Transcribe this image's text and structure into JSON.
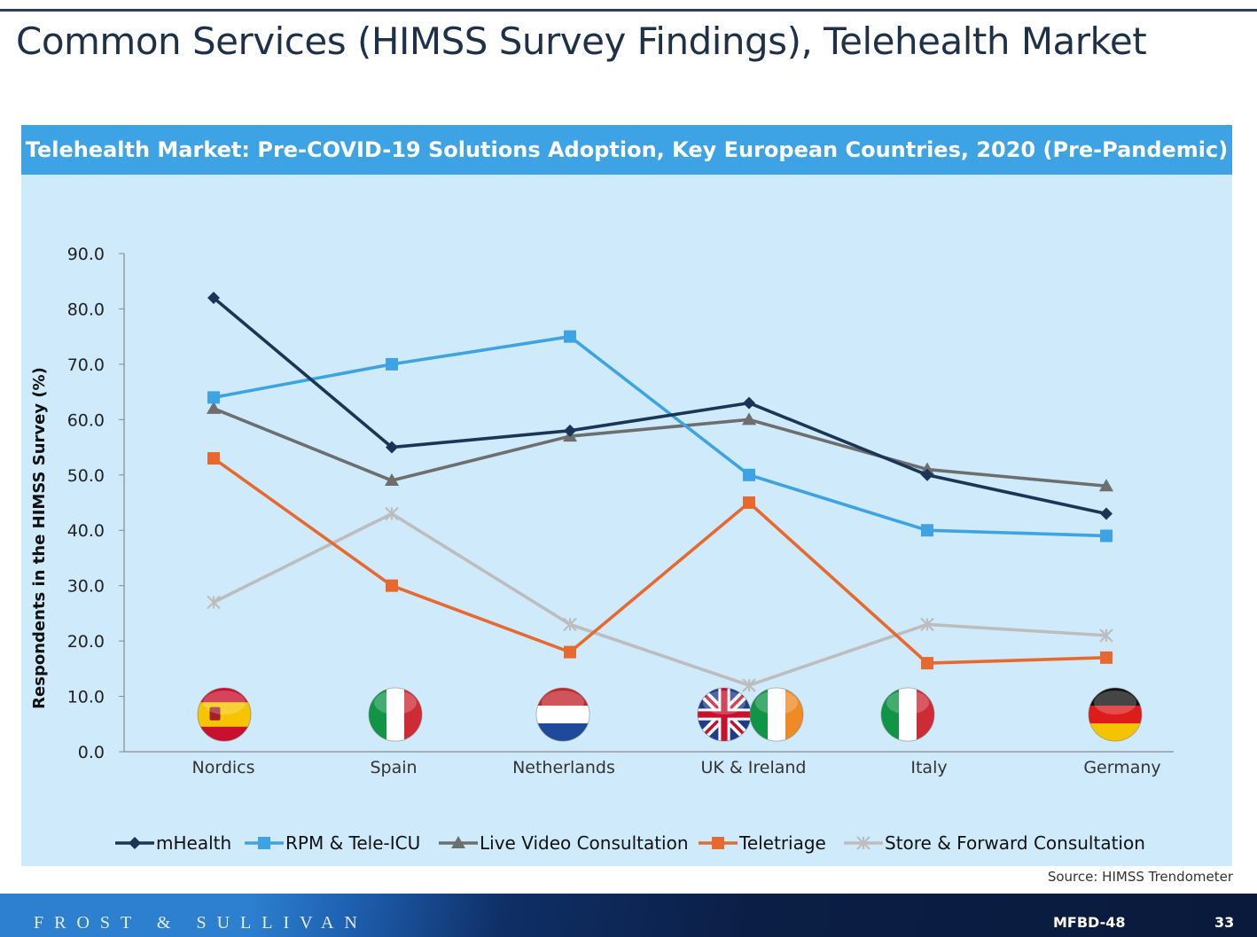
{
  "page": {
    "title": "Common Services (HIMSS Survey Findings), Telehealth Market",
    "source": "Source: HIMSS Trendometer"
  },
  "footer": {
    "brand": "FROST & SULLIVAN",
    "code": "MFBD-48",
    "page_number": "33"
  },
  "chart_data": {
    "type": "line",
    "title": "Telehealth Market: Pre-COVID-19 Solutions Adoption, Key European Countries, 2020 (Pre-Pandemic)",
    "xlabel": "",
    "ylabel": "Respondents in the HIMSS Survey (%)",
    "ylim": [
      0,
      90
    ],
    "yticks": [
      "0.0",
      "10.0",
      "20.0",
      "30.0",
      "40.0",
      "50.0",
      "60.0",
      "70.0",
      "80.0",
      "90.0"
    ],
    "grid": false,
    "legend_position": "bottom",
    "categories": [
      "Nordics",
      "Spain",
      "Netherlands",
      "UK & Ireland",
      "Italy",
      "Germany"
    ],
    "flags": [
      [
        "spain"
      ],
      [
        "italy"
      ],
      [
        "netherlands"
      ],
      [
        "uk",
        "ireland"
      ],
      [
        "italy"
      ],
      [
        "germany"
      ]
    ],
    "series": [
      {
        "name": "mHealth",
        "color": "#1c3557",
        "marker": "diamond",
        "values": [
          82,
          55,
          58,
          63,
          50,
          43
        ]
      },
      {
        "name": "RPM & Tele-ICU",
        "color": "#3ea3e4",
        "marker": "square",
        "values": [
          64,
          70,
          75,
          50,
          40,
          39
        ]
      },
      {
        "name": "Live Video Consultation",
        "color": "#6e6e6e",
        "marker": "triangle",
        "values": [
          62,
          49,
          57,
          60,
          51,
          48
        ]
      },
      {
        "name": "Teletriage",
        "color": "#e8692d",
        "marker": "square",
        "values": [
          53,
          30,
          18,
          45,
          16,
          17
        ]
      },
      {
        "name": "Store  & Forward Consultation",
        "color": "#bdbdbd",
        "marker": "star",
        "values": [
          27,
          43,
          23,
          12,
          23,
          21
        ]
      }
    ]
  }
}
